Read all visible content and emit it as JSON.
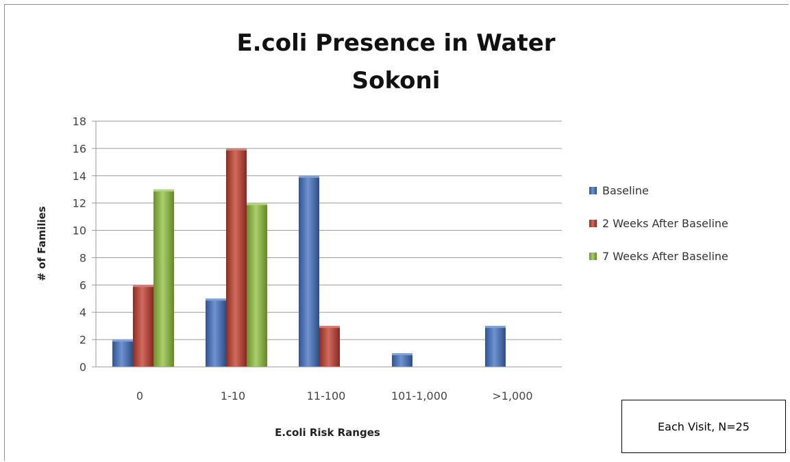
{
  "chart_data": {
    "type": "bar",
    "title_lines": [
      "E.coli Presence in Water",
      "Sokoni"
    ],
    "xlabel": "E.coli Risk Ranges",
    "ylabel": "# of Families",
    "categories": [
      "0",
      "1-10",
      "11-100",
      "101-1,000",
      ">1,000"
    ],
    "ylim": [
      0,
      18
    ],
    "yticks": [
      "0",
      "2",
      "4",
      "6",
      "8",
      "10",
      "12",
      "14",
      "16",
      "18"
    ],
    "grid": true,
    "legend_position": "right",
    "series": [
      {
        "name": "Baseline",
        "color": "#3f6fc0",
        "values": [
          2,
          5,
          14,
          1,
          3
        ]
      },
      {
        "name": "2 Weeks After Baseline",
        "color": "#c0392b",
        "values": [
          6,
          16,
          3,
          0,
          0
        ]
      },
      {
        "name": "7 Weeks After Baseline",
        "color": "#8fbf3a",
        "values": [
          13,
          12,
          0,
          0,
          0
        ]
      }
    ]
  },
  "note": "Each Visit, N=25"
}
